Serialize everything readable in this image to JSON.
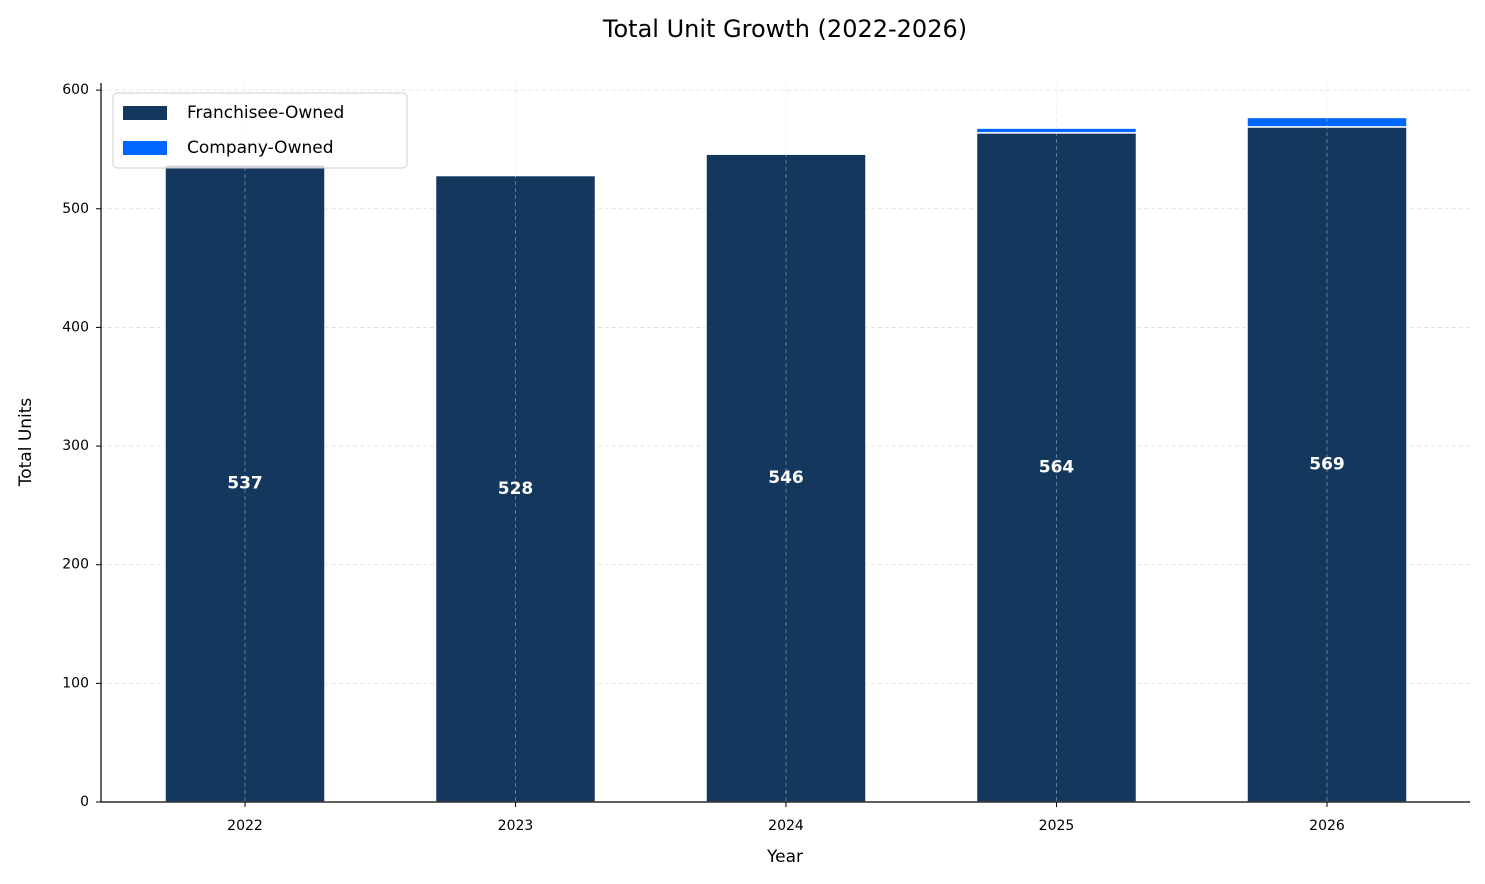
{
  "chart_data": {
    "type": "stacked_bar",
    "title": "Total Unit Growth (2022-2026)",
    "x_label": "Year",
    "y_label": "Total Units",
    "categories": [
      "2022",
      "2023",
      "2024",
      "2025",
      "2026"
    ],
    "series": [
      {
        "name": "Franchisee-Owned",
        "color": "#14375e",
        "values": [
          537,
          528,
          546,
          564,
          569
        ]
      },
      {
        "name": "Company-Owned",
        "color": "#0066ff",
        "values": [
          0,
          0,
          0,
          4,
          8
        ]
      }
    ],
    "ylim": [
      0,
      606
    ],
    "yticks": [
      0,
      100,
      200,
      300,
      400,
      500,
      600
    ],
    "grid": true,
    "legend": "upper-left",
    "data_labels_series": 0
  }
}
